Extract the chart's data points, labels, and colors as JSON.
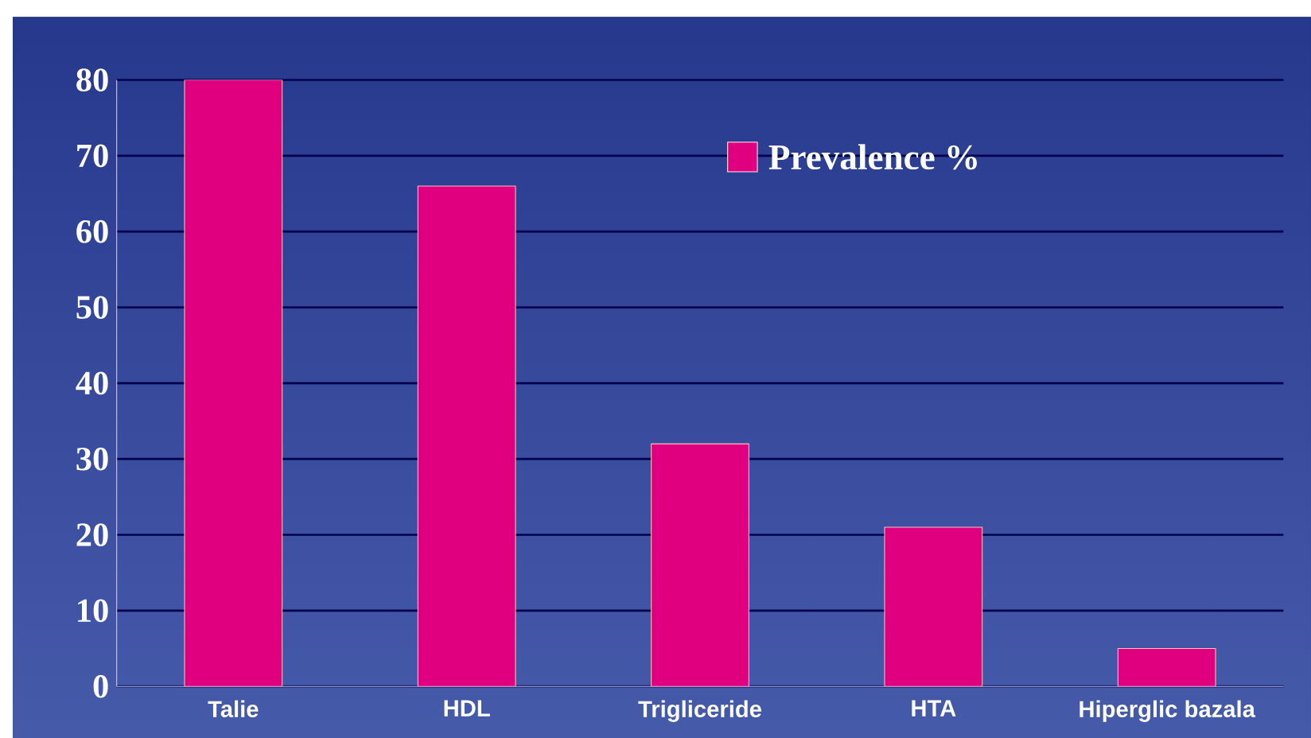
{
  "chart_data": {
    "type": "bar",
    "categories": [
      "Talie",
      "HDL",
      "Trigliceride",
      "HTA",
      "Hiperglic bazala"
    ],
    "series": [
      {
        "name": "Prevalence %",
        "color": "#e0007f",
        "values": [
          80,
          66,
          32,
          21,
          5
        ]
      }
    ],
    "ylim": [
      0,
      80
    ],
    "yticks": [
      0,
      10,
      20,
      30,
      40,
      50,
      60,
      70,
      80
    ],
    "grid": "y",
    "legend": "top right"
  }
}
